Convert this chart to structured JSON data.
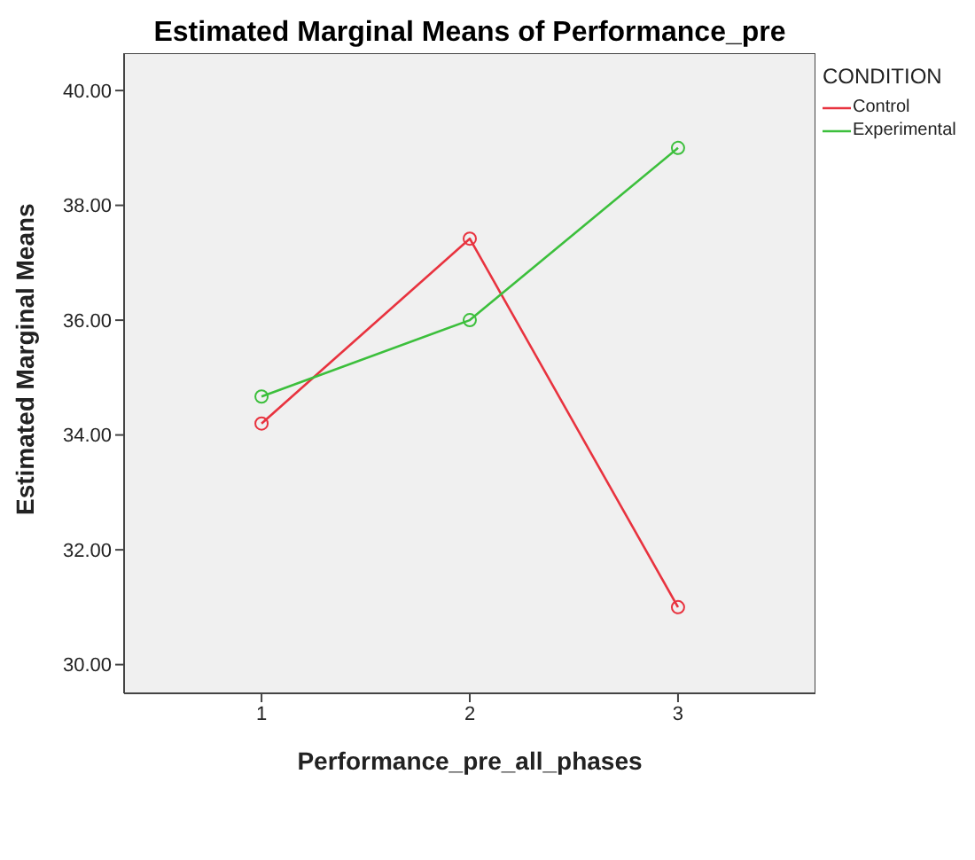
{
  "chart_data": {
    "type": "line",
    "title": "Estimated Marginal Means of Performance_pre",
    "xlabel": "Performance_pre_all_phases",
    "ylabel": "Estimated Marginal Means",
    "legend_title": "CONDITION",
    "categories": [
      "1",
      "2",
      "3"
    ],
    "series": [
      {
        "name": "Control",
        "color": "#e8333f",
        "values": [
          34.2,
          37.42,
          31.0
        ]
      },
      {
        "name": "Experimental",
        "color": "#3cbf3c",
        "values": [
          34.67,
          36.0,
          39.0
        ]
      }
    ],
    "ylim": [
      29.5,
      40.65
    ],
    "yticks": [
      {
        "value": 30,
        "label": "30.00"
      },
      {
        "value": 32,
        "label": "32.00"
      },
      {
        "value": 34,
        "label": "34.00"
      },
      {
        "value": 36,
        "label": "36.00"
      },
      {
        "value": 38,
        "label": "38.00"
      },
      {
        "value": 40,
        "label": "40.00"
      }
    ],
    "grid": false,
    "legend": "top right",
    "marker": "circle",
    "line_style": "solid"
  }
}
